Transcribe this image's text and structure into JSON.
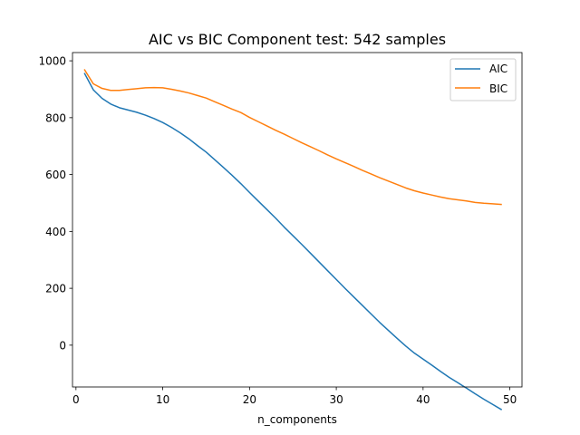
{
  "chart_data": {
    "type": "line",
    "title": "AIC vs BIC Component test: 542 samples",
    "xlabel": "n_components",
    "ylabel": "",
    "xlim": [
      -0.4,
      51.4
    ],
    "ylim": [
      -147,
      1029
    ],
    "xticks": [
      0,
      10,
      20,
      30,
      40,
      50
    ],
    "yticks": [
      0,
      200,
      400,
      600,
      800,
      1000
    ],
    "grid": false,
    "legend": "top-right",
    "x": [
      1,
      2,
      3,
      4,
      5,
      6,
      7,
      8,
      9,
      10,
      11,
      12,
      13,
      14,
      15,
      16,
      17,
      18,
      19,
      20,
      21,
      22,
      23,
      24,
      25,
      26,
      27,
      28,
      29,
      30,
      31,
      32,
      33,
      34,
      35,
      36,
      37,
      38,
      39,
      40,
      41,
      42,
      43,
      44,
      45,
      46,
      47,
      48,
      49
    ],
    "series": [
      {
        "name": "AIC",
        "color": "#1f77b4",
        "values": [
          955,
          898,
          868,
          848,
          835,
          827,
          819,
          809,
          797,
          783,
          766,
          747,
          726,
          702,
          679,
          652,
          625,
          597,
          568,
          537,
          507,
          477,
          447,
          415,
          385,
          355,
          324,
          293,
          262,
          231,
          200,
          170,
          140,
          110,
          80,
          52,
          24,
          -3,
          -28,
          -49,
          -70,
          -92,
          -113,
          -132,
          -151,
          -171,
          -190,
          -208,
          -226
        ]
      },
      {
        "name": "BIC",
        "color": "#ff7f0e",
        "values": [
          968,
          919,
          903,
          896,
          896,
          899,
          902,
          905,
          906,
          905,
          900,
          894,
          887,
          878,
          869,
          856,
          843,
          830,
          818,
          801,
          786,
          771,
          756,
          742,
          727,
          712,
          698,
          684,
          669,
          655,
          642,
          629,
          615,
          602,
          589,
          577,
          565,
          553,
          543,
          535,
          528,
          521,
          515,
          511,
          507,
          502,
          499,
          497,
          495
        ]
      }
    ]
  }
}
